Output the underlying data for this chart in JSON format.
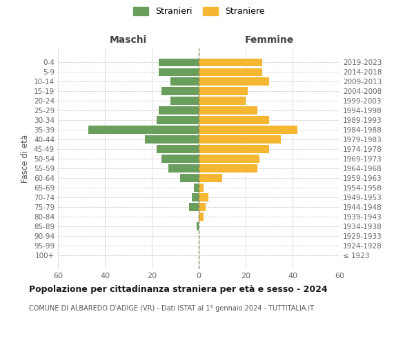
{
  "age_groups": [
    "100+",
    "95-99",
    "90-94",
    "85-89",
    "80-84",
    "75-79",
    "70-74",
    "65-69",
    "60-64",
    "55-59",
    "50-54",
    "45-49",
    "40-44",
    "35-39",
    "30-34",
    "25-29",
    "20-24",
    "15-19",
    "10-14",
    "5-9",
    "0-4"
  ],
  "birth_years": [
    "≤ 1923",
    "1924-1928",
    "1929-1933",
    "1934-1938",
    "1939-1943",
    "1944-1948",
    "1949-1953",
    "1954-1958",
    "1959-1963",
    "1964-1968",
    "1969-1973",
    "1974-1978",
    "1979-1983",
    "1984-1988",
    "1989-1993",
    "1994-1998",
    "1999-2003",
    "2004-2008",
    "2009-2013",
    "2014-2018",
    "2019-2023"
  ],
  "males": [
    0,
    0,
    0,
    1,
    0,
    4,
    3,
    2,
    8,
    13,
    16,
    18,
    23,
    47,
    18,
    17,
    12,
    16,
    12,
    17,
    17
  ],
  "females": [
    0,
    0,
    0,
    0,
    2,
    3,
    4,
    2,
    10,
    25,
    26,
    30,
    35,
    42,
    30,
    25,
    20,
    21,
    30,
    27,
    27
  ],
  "male_color": "#6a9e5c",
  "female_color": "#f5b731",
  "bar_height": 0.82,
  "xlim": 60,
  "title": "Popolazione per cittadinanza straniera per età e sesso - 2024",
  "subtitle": "COMUNE DI ALBAREDO D'ADIGE (VR) - Dati ISTAT al 1° gennaio 2024 - TUTTITALIA.IT",
  "ylabel_left": "Fasce di età",
  "xlabel_left_label": "Maschi",
  "xlabel_right_label": "Femmine",
  "legend_male": "Stranieri",
  "legend_female": "Straniere",
  "background_color": "#ffffff",
  "grid_color": "#cccccc",
  "label_color": "#666666",
  "fig_width": 6.0,
  "fig_height": 5.0,
  "dpi": 100
}
